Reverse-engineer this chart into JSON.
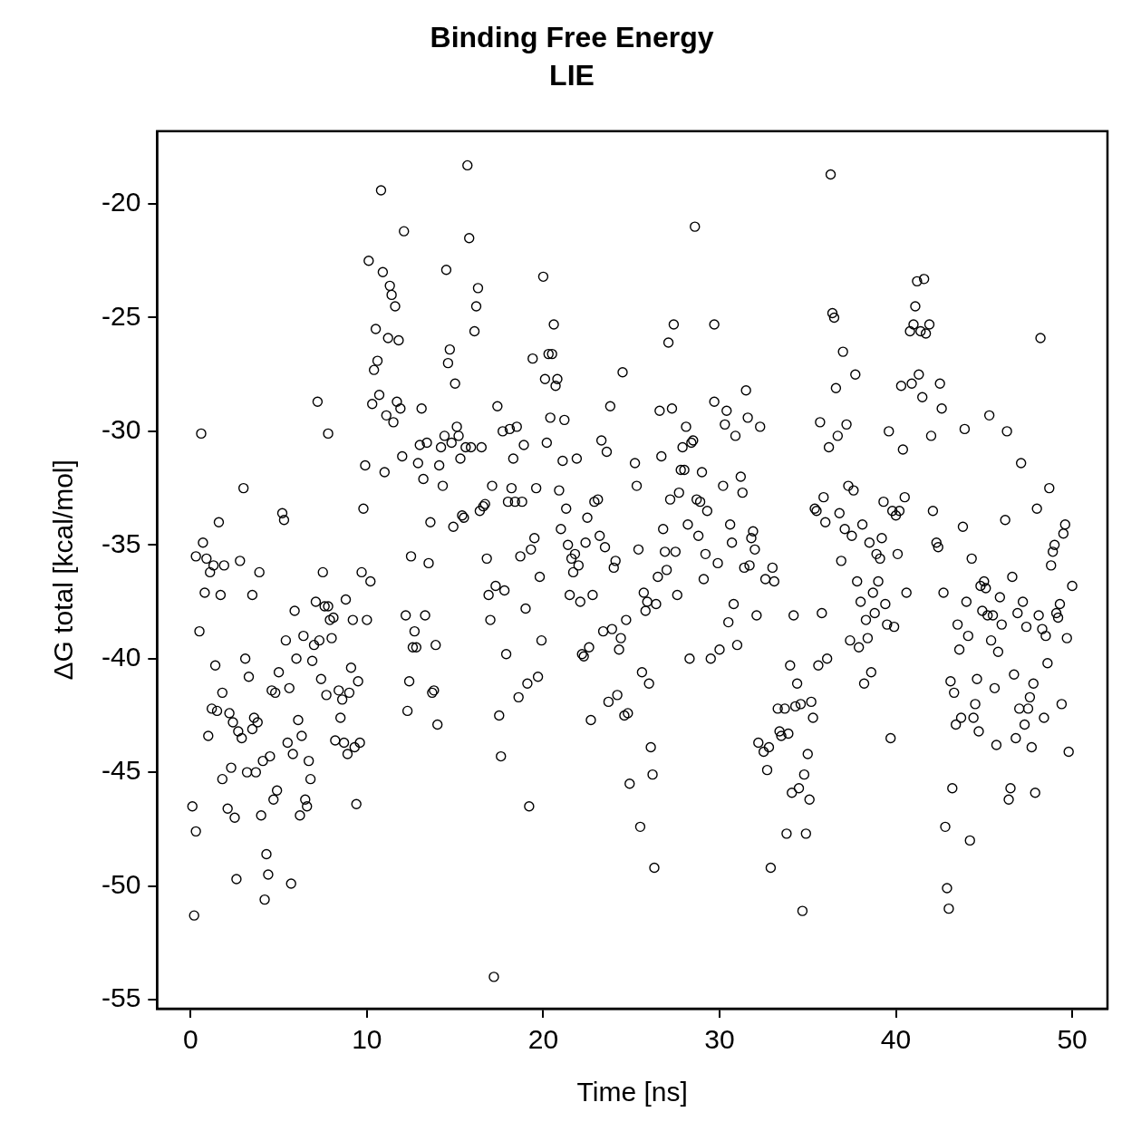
{
  "chart_data": {
    "type": "scatter",
    "title": "Binding Free Energy",
    "subtitle": "LIE",
    "xlabel": "Time [ns]",
    "ylabel": "ΔG total [kcal/mol]",
    "marker": "circle",
    "grid": false,
    "legend": false,
    "xlim": [
      -1.9,
      52
    ],
    "ylim": [
      -55.4,
      -16.8
    ],
    "xticks": [
      0,
      10,
      20,
      30,
      40,
      50
    ],
    "yticks": [
      -55,
      -50,
      -45,
      -40,
      -35,
      -30,
      -25,
      -20
    ],
    "series": [
      {
        "color": "#000000",
        "x": [
          0.1,
          0.2,
          0.3,
          0.3,
          0.5,
          0.6,
          0.7,
          0.8,
          0.9,
          1.0,
          1.1,
          1.2,
          1.3,
          1.4,
          1.5,
          1.6,
          1.7,
          1.8,
          1.8,
          1.9,
          2.1,
          2.2,
          2.3,
          2.4,
          2.5,
          2.6,
          2.7,
          2.8,
          2.9,
          3.0,
          3.1,
          3.2,
          3.3,
          3.5,
          3.5,
          3.6,
          3.7,
          3.8,
          3.9,
          4.0,
          4.1,
          4.2,
          4.3,
          4.4,
          4.5,
          4.6,
          4.7,
          4.8,
          4.9,
          5.0,
          5.2,
          5.3,
          5.4,
          5.5,
          5.6,
          5.7,
          5.8,
          5.9,
          6.0,
          6.1,
          6.2,
          6.3,
          6.4,
          6.5,
          6.6,
          6.7,
          6.8,
          6.9,
          7.0,
          7.1,
          7.2,
          7.3,
          7.4,
          7.5,
          7.6,
          7.7,
          7.8,
          7.8,
          7.9,
          8.0,
          8.1,
          8.2,
          8.4,
          8.5,
          8.6,
          8.7,
          8.8,
          8.9,
          9.0,
          9.1,
          9.2,
          9.3,
          9.4,
          9.5,
          9.6,
          9.7,
          9.8,
          9.9,
          10.0,
          10.1,
          10.2,
          10.3,
          10.4,
          10.5,
          10.6,
          10.7,
          10.8,
          10.9,
          11.0,
          11.1,
          11.2,
          11.3,
          11.4,
          11.5,
          11.6,
          11.7,
          11.8,
          11.9,
          12.0,
          12.1,
          12.2,
          12.3,
          12.4,
          12.5,
          12.6,
          12.7,
          12.8,
          12.9,
          13.0,
          13.1,
          13.2,
          13.3,
          13.4,
          13.5,
          13.6,
          13.7,
          13.8,
          13.9,
          14.0,
          14.1,
          14.2,
          14.3,
          14.4,
          14.5,
          14.6,
          14.7,
          14.8,
          14.9,
          15.0,
          15.1,
          15.2,
          15.3,
          15.4,
          15.5,
          15.6,
          15.7,
          15.8,
          15.9,
          16.1,
          16.2,
          16.3,
          16.4,
          16.5,
          16.6,
          16.7,
          16.8,
          16.9,
          17.0,
          17.1,
          17.2,
          17.3,
          17.4,
          17.5,
          17.6,
          17.7,
          17.8,
          17.9,
          18.0,
          18.1,
          18.2,
          18.3,
          18.4,
          18.5,
          18.6,
          18.7,
          18.8,
          18.9,
          19.0,
          19.1,
          19.2,
          19.3,
          19.4,
          19.5,
          19.6,
          19.7,
          19.8,
          19.9,
          20.0,
          20.1,
          20.2,
          20.3,
          20.4,
          20.5,
          20.6,
          20.7,
          20.8,
          20.9,
          21.0,
          21.1,
          21.2,
          21.3,
          21.4,
          21.5,
          21.6,
          21.7,
          21.8,
          21.9,
          22.0,
          22.1,
          22.2,
          22.3,
          22.4,
          22.5,
          22.6,
          22.7,
          22.8,
          22.9,
          23.1,
          23.2,
          23.3,
          23.4,
          23.5,
          23.6,
          23.7,
          23.8,
          23.9,
          24.0,
          24.1,
          24.2,
          24.3,
          24.4,
          24.5,
          24.6,
          24.7,
          24.8,
          24.9,
          25.2,
          25.3,
          25.4,
          25.5,
          25.6,
          25.7,
          25.8,
          25.9,
          26.0,
          26.1,
          26.2,
          26.3,
          26.4,
          26.5,
          26.6,
          26.7,
          26.8,
          26.9,
          27.0,
          27.1,
          27.2,
          27.3,
          27.4,
          27.5,
          27.6,
          27.7,
          27.8,
          27.9,
          28.0,
          28.1,
          28.2,
          28.3,
          28.4,
          28.5,
          28.6,
          28.7,
          28.8,
          28.9,
          29.0,
          29.1,
          29.2,
          29.3,
          29.5,
          29.7,
          29.7,
          29.9,
          30.0,
          30.2,
          30.3,
          30.4,
          30.5,
          30.6,
          30.7,
          30.8,
          30.9,
          31.0,
          31.2,
          31.3,
          31.4,
          31.5,
          31.6,
          31.7,
          31.8,
          31.9,
          32.0,
          32.1,
          32.2,
          32.3,
          32.5,
          32.6,
          32.7,
          32.8,
          32.9,
          33.0,
          33.1,
          33.3,
          33.4,
          33.5,
          33.7,
          33.8,
          33.9,
          34.0,
          34.1,
          34.2,
          34.3,
          34.4,
          34.5,
          34.6,
          34.7,
          34.8,
          34.9,
          35.0,
          35.1,
          35.2,
          35.3,
          35.4,
          35.5,
          35.6,
          35.7,
          35.8,
          35.9,
          36.0,
          36.1,
          36.2,
          36.3,
          36.4,
          36.5,
          36.6,
          36.7,
          36.8,
          36.9,
          37.0,
          37.1,
          37.2,
          37.3,
          37.4,
          37.5,
          37.6,
          37.7,
          37.8,
          37.9,
          38.0,
          38.1,
          38.2,
          38.3,
          38.4,
          38.5,
          38.6,
          38.7,
          38.8,
          38.9,
          39.0,
          39.1,
          39.2,
          39.3,
          39.4,
          39.5,
          39.6,
          39.7,
          39.8,
          39.9,
          40.0,
          40.1,
          40.2,
          40.3,
          40.4,
          40.5,
          40.6,
          40.8,
          40.9,
          41.0,
          41.1,
          41.2,
          41.3,
          41.4,
          41.5,
          41.6,
          41.7,
          41.9,
          42.0,
          42.1,
          42.3,
          42.4,
          42.5,
          42.6,
          42.7,
          42.8,
          42.9,
          43.0,
          43.1,
          43.2,
          43.3,
          43.4,
          43.5,
          43.6,
          43.7,
          43.8,
          43.9,
          44.0,
          44.1,
          44.2,
          44.3,
          44.4,
          44.5,
          44.6,
          44.7,
          44.8,
          44.9,
          45.0,
          45.1,
          45.2,
          45.3,
          45.4,
          45.5,
          45.6,
          45.7,
          45.8,
          45.9,
          46.0,
          46.2,
          46.3,
          46.4,
          46.5,
          46.6,
          46.7,
          46.8,
          46.9,
          47.0,
          47.1,
          47.2,
          47.3,
          47.4,
          47.5,
          47.6,
          47.7,
          47.8,
          47.9,
          48.0,
          48.1,
          48.2,
          48.3,
          48.4,
          48.5,
          48.6,
          48.7,
          48.8,
          48.9,
          49.0,
          49.1,
          49.2,
          49.3,
          49.4,
          49.5,
          49.6,
          49.7,
          49.8,
          50.0
        ],
        "values": [
          -46.5,
          -51.3,
          -47.6,
          -35.5,
          -38.8,
          -30.1,
          -34.9,
          -37.1,
          -35.6,
          -43.4,
          -36.2,
          -42.2,
          -35.9,
          -40.3,
          -42.3,
          -34.0,
          -37.2,
          -41.5,
          -45.3,
          -35.9,
          -46.6,
          -42.4,
          -44.8,
          -42.8,
          -47.0,
          -49.7,
          -43.2,
          -35.7,
          -43.5,
          -32.5,
          -40.0,
          -45.0,
          -40.8,
          -43.1,
          -37.2,
          -42.6,
          -45.0,
          -42.8,
          -36.2,
          -46.9,
          -44.5,
          -50.6,
          -48.6,
          -49.5,
          -44.3,
          -41.4,
          -46.2,
          -41.5,
          -45.8,
          -40.6,
          -33.6,
          -33.9,
          -39.2,
          -43.7,
          -41.3,
          -49.9,
          -44.2,
          -37.9,
          -40.0,
          -42.7,
          -46.9,
          -43.4,
          -39.0,
          -46.2,
          -46.5,
          -44.5,
          -45.3,
          -40.1,
          -39.4,
          -37.5,
          -28.7,
          -39.2,
          -40.9,
          -36.2,
          -37.7,
          -41.6,
          -37.7,
          -30.1,
          -38.3,
          -39.1,
          -38.2,
          -43.6,
          -41.4,
          -42.6,
          -41.8,
          -43.7,
          -37.4,
          -44.2,
          -41.5,
          -40.4,
          -38.3,
          -43.9,
          -46.4,
          -41.0,
          -43.7,
          -36.2,
          -33.4,
          -31.5,
          -38.3,
          -22.5,
          -36.6,
          -28.8,
          -27.3,
          -25.5,
          -26.9,
          -28.4,
          -19.4,
          -23.0,
          -31.8,
          -29.3,
          -25.9,
          -23.6,
          -24.0,
          -29.6,
          -24.5,
          -28.7,
          -26.0,
          -29.0,
          -31.1,
          -21.2,
          -38.1,
          -42.3,
          -41.0,
          -35.5,
          -39.5,
          -38.8,
          -39.5,
          -31.4,
          -30.6,
          -29.0,
          -32.1,
          -38.1,
          -30.5,
          -35.8,
          -34.0,
          -41.5,
          -41.4,
          -39.4,
          -42.9,
          -31.5,
          -30.7,
          -32.4,
          -30.2,
          -22.9,
          -27.0,
          -26.4,
          -30.5,
          -34.2,
          -27.9,
          -29.8,
          -30.2,
          -31.2,
          -33.7,
          -33.8,
          -30.7,
          -18.3,
          -21.5,
          -30.7,
          -25.6,
          -24.5,
          -23.7,
          -33.5,
          -30.7,
          -33.3,
          -33.2,
          -35.6,
          -37.2,
          -38.3,
          -32.4,
          -54.0,
          -36.8,
          -28.9,
          -42.5,
          -44.3,
          -30.0,
          -37.0,
          -39.8,
          -33.1,
          -29.9,
          -32.5,
          -31.2,
          -33.1,
          -29.8,
          -41.7,
          -35.5,
          -33.1,
          -30.6,
          -37.8,
          -41.1,
          -46.5,
          -35.2,
          -26.8,
          -34.7,
          -32.5,
          -40.8,
          -36.4,
          -39.2,
          -23.2,
          -27.7,
          -30.5,
          -26.6,
          -29.4,
          -26.6,
          -25.3,
          -28.0,
          -27.7,
          -32.6,
          -34.3,
          -31.3,
          -29.5,
          -33.4,
          -35.0,
          -37.2,
          -35.6,
          -36.2,
          -35.4,
          -31.2,
          -35.9,
          -37.5,
          -39.8,
          -39.9,
          -34.9,
          -33.8,
          -39.5,
          -42.7,
          -37.2,
          -33.1,
          -33.0,
          -34.6,
          -30.4,
          -38.8,
          -35.1,
          -30.9,
          -41.9,
          -28.9,
          -38.7,
          -36.0,
          -35.7,
          -41.6,
          -39.6,
          -39.1,
          -27.4,
          -42.5,
          -38.3,
          -42.4,
          -45.5,
          -31.4,
          -32.4,
          -35.2,
          -47.4,
          -40.6,
          -37.1,
          -37.9,
          -37.5,
          -41.1,
          -43.9,
          -45.1,
          -49.2,
          -37.6,
          -36.4,
          -29.1,
          -31.1,
          -34.3,
          -35.3,
          -36.1,
          -26.1,
          -33.0,
          -29.0,
          -25.3,
          -35.3,
          -37.2,
          -32.7,
          -31.7,
          -30.7,
          -31.7,
          -29.8,
          -34.1,
          -40.0,
          -30.5,
          -30.4,
          -21.0,
          -33.0,
          -34.6,
          -33.1,
          -31.8,
          -36.5,
          -35.4,
          -33.5,
          -40.0,
          -25.3,
          -28.7,
          -35.8,
          -39.6,
          -32.4,
          -29.7,
          -29.1,
          -38.4,
          -34.1,
          -34.9,
          -37.6,
          -30.2,
          -39.4,
          -32.0,
          -32.7,
          -36.0,
          -28.2,
          -29.4,
          -35.9,
          -34.7,
          -34.4,
          -35.2,
          -38.1,
          -43.7,
          -29.8,
          -44.1,
          -36.5,
          -44.9,
          -43.9,
          -49.2,
          -36.0,
          -36.6,
          -42.2,
          -43.2,
          -43.4,
          -42.2,
          -47.7,
          -43.3,
          -40.3,
          -45.9,
          -38.1,
          -42.1,
          -41.1,
          -45.7,
          -42.0,
          -51.1,
          -45.1,
          -47.7,
          -44.2,
          -46.2,
          -41.9,
          -42.6,
          -33.4,
          -33.5,
          -40.3,
          -29.6,
          -38.0,
          -32.9,
          -34.0,
          -40.0,
          -30.7,
          -18.7,
          -24.8,
          -25.0,
          -28.1,
          -30.2,
          -33.6,
          -35.7,
          -26.5,
          -34.3,
          -29.7,
          -32.4,
          -39.2,
          -34.6,
          -32.6,
          -27.5,
          -36.6,
          -39.5,
          -37.5,
          -34.1,
          -41.1,
          -38.3,
          -39.1,
          -34.9,
          -40.6,
          -37.1,
          -38.0,
          -35.4,
          -36.6,
          -35.6,
          -34.7,
          -33.1,
          -37.6,
          -38.5,
          -30.0,
          -43.5,
          -33.5,
          -38.6,
          -33.7,
          -35.4,
          -33.5,
          -28.0,
          -30.8,
          -32.9,
          -37.1,
          -25.6,
          -27.9,
          -25.3,
          -24.5,
          -23.4,
          -27.5,
          -25.6,
          -28.5,
          -23.3,
          -25.7,
          -25.3,
          -30.2,
          -33.5,
          -34.9,
          -35.1,
          -27.9,
          -29.0,
          -37.1,
          -47.4,
          -50.1,
          -51.0,
          -41.0,
          -45.7,
          -41.5,
          -42.9,
          -38.5,
          -39.6,
          -42.6,
          -34.2,
          -29.9,
          -37.5,
          -39.0,
          -48.0,
          -35.6,
          -42.6,
          -42.0,
          -40.9,
          -43.2,
          -36.8,
          -37.9,
          -36.6,
          -36.9,
          -38.1,
          -29.3,
          -39.2,
          -38.1,
          -41.3,
          -43.8,
          -39.7,
          -37.3,
          -38.5,
          -33.9,
          -30.0,
          -46.2,
          -45.7,
          -36.4,
          -40.7,
          -43.5,
          -38.0,
          -42.2,
          -31.4,
          -37.5,
          -42.9,
          -38.6,
          -42.2,
          -41.7,
          -43.9,
          -41.1,
          -45.9,
          -33.4,
          -38.1,
          -25.9,
          -38.7,
          -42.6,
          -39.0,
          -40.2,
          -32.5,
          -35.9,
          -35.3,
          -35.0,
          -38.0,
          -38.2,
          -37.6,
          -42.0,
          -34.5,
          -34.1,
          -39.1,
          -44.1,
          -36.8
        ]
      }
    ]
  }
}
